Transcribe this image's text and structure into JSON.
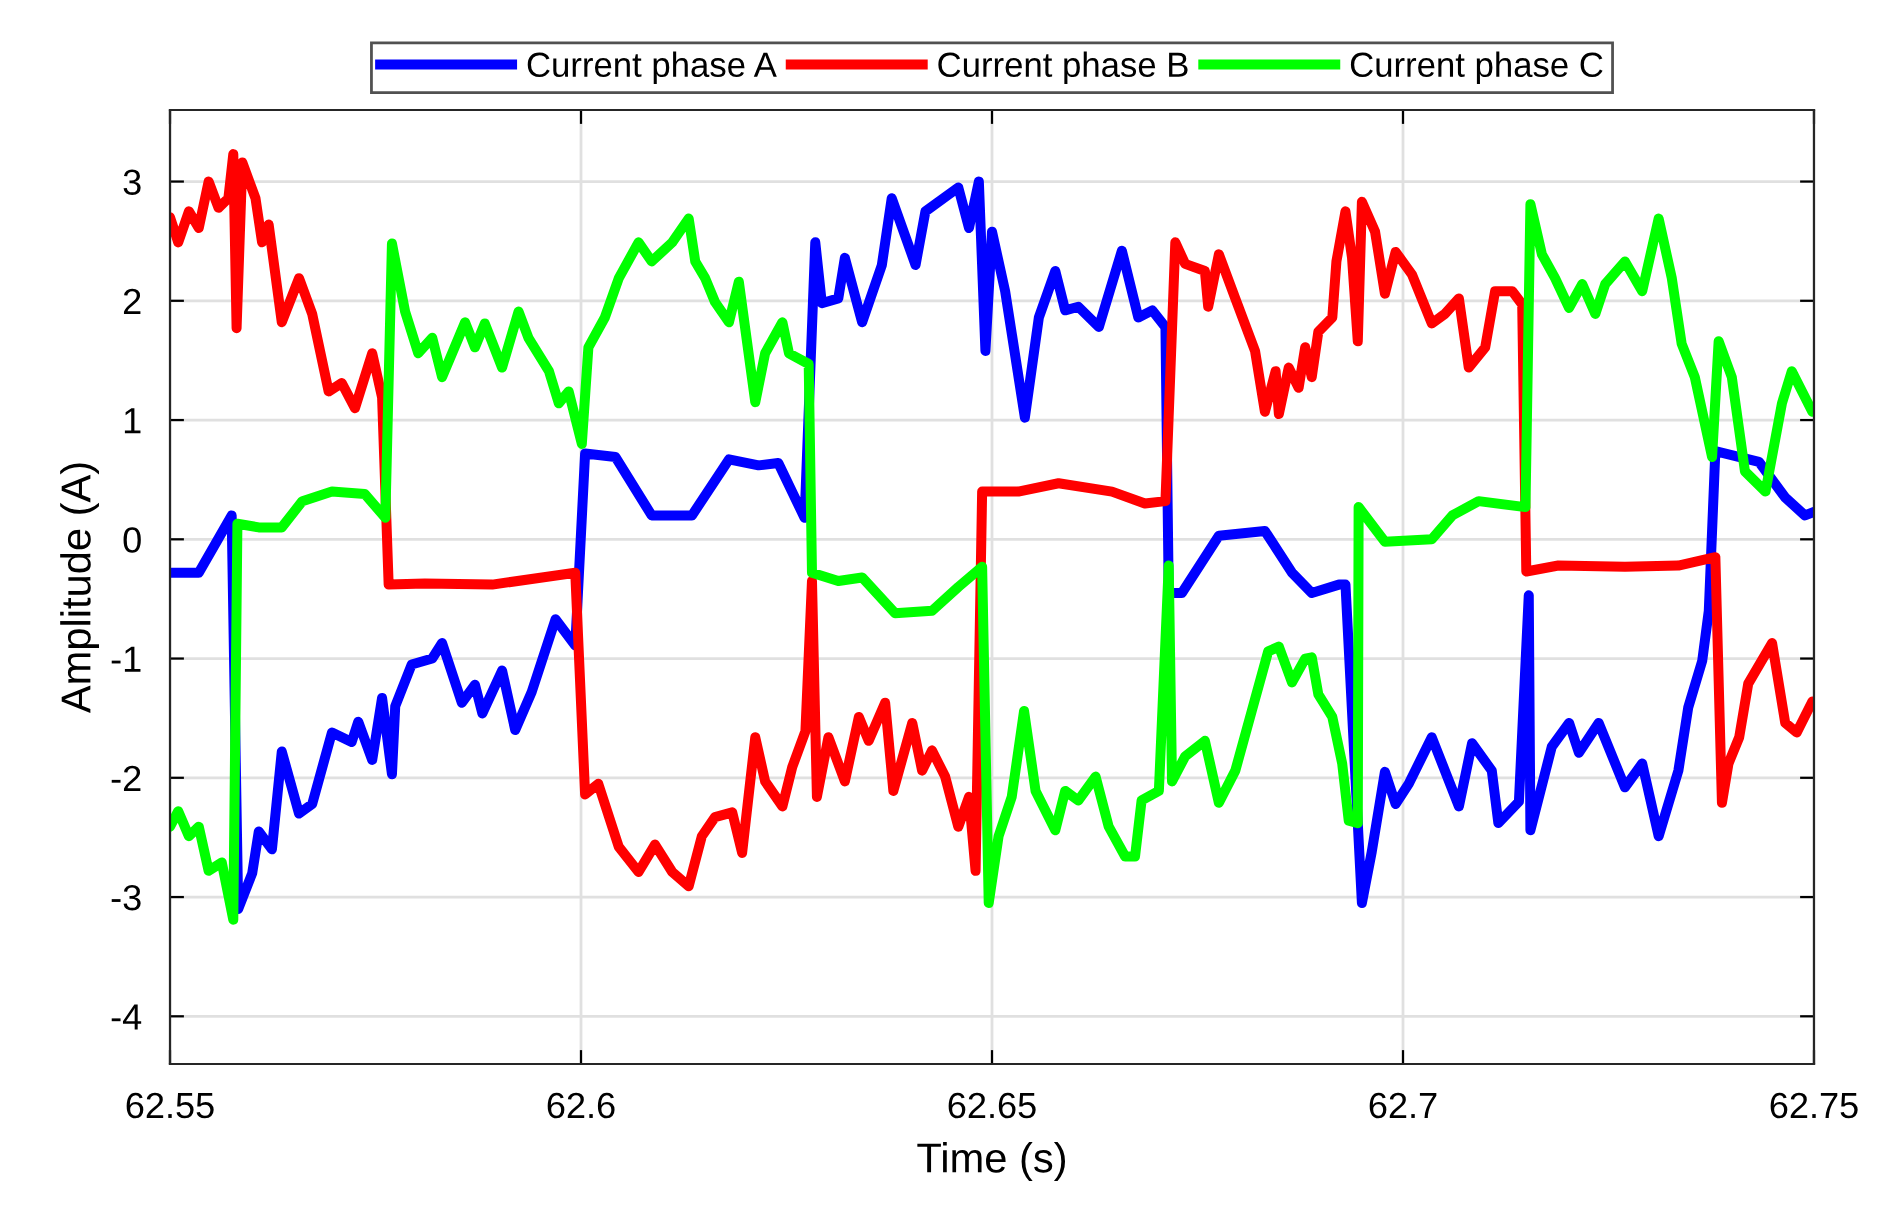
{
  "chart_data": {
    "type": "line",
    "xlabel": "Time (s)",
    "ylabel": "Amplitude (A)",
    "xlim": [
      62.55,
      62.75
    ],
    "xticks": [
      {
        "value": 62.55,
        "label": "62.55"
      },
      {
        "value": 62.6,
        "label": "62.6"
      },
      {
        "value": 62.65,
        "label": "62.65"
      },
      {
        "value": 62.7,
        "label": "62.7"
      },
      {
        "value": 62.75,
        "label": "62.75"
      }
    ],
    "ylim": [
      -4.4,
      3.6
    ],
    "yticks": [
      -4,
      -3,
      -2,
      -1,
      0,
      1,
      2,
      3
    ],
    "grid": true,
    "legend": "top",
    "marker": "none",
    "line_style": "solid",
    "series": [
      {
        "name": "Current phase A",
        "color": "#0000ff",
        "x": [
          62.55,
          62.5535,
          62.5575,
          62.5583,
          62.56,
          62.5608,
          62.5624,
          62.5636,
          62.5657,
          62.5673,
          62.5697,
          62.5721,
          62.5729,
          62.5746,
          62.5758,
          62.577,
          62.5774,
          62.5794,
          62.5819,
          62.5831,
          62.5855,
          62.5871,
          62.588,
          62.5904,
          62.592,
          62.594,
          62.5969,
          62.5993,
          62.6005,
          62.6042,
          62.6086,
          62.6135,
          62.618,
          62.6216,
          62.624,
          62.6272,
          62.6285,
          62.6293,
          62.6313,
          62.6321,
          62.6342,
          62.6366,
          62.6378,
          62.6407,
          62.6419,
          62.6459,
          62.6472,
          62.6484,
          62.6492,
          62.65,
          62.6516,
          62.654,
          62.6557,
          62.6577,
          62.6589,
          62.6605,
          62.663,
          62.6658,
          62.6678,
          62.6695,
          62.6711,
          62.6715,
          62.6731,
          62.6776,
          62.6832,
          62.6865,
          62.6889,
          62.6922,
          62.693,
          62.695,
          62.6962,
          62.6978,
          62.6991,
          62.7007,
          62.7035,
          62.7068,
          62.7084,
          62.7108,
          62.7116,
          62.7141,
          62.7153,
          62.7155,
          62.7181,
          62.7202,
          62.7214,
          62.7238,
          62.727,
          62.7291,
          62.7311,
          62.7335,
          62.7347,
          62.7364,
          62.7372,
          62.738,
          62.7433,
          62.7465,
          62.7489,
          62.75
        ],
        "values": [
          -0.28,
          -0.28,
          0.2,
          -3.1,
          -2.8,
          -2.45,
          -2.6,
          -1.78,
          -2.3,
          -2.22,
          -1.62,
          -1.7,
          -1.53,
          -1.85,
          -1.33,
          -1.97,
          -1.4,
          -1.05,
          -1.0,
          -0.87,
          -1.37,
          -1.22,
          -1.46,
          -1.1,
          -1.6,
          -1.28,
          -0.67,
          -0.89,
          0.72,
          0.69,
          0.2,
          0.2,
          0.67,
          0.62,
          0.64,
          0.18,
          2.49,
          1.98,
          2.02,
          2.36,
          1.82,
          2.3,
          2.86,
          2.3,
          2.75,
          2.95,
          2.61,
          3.0,
          1.58,
          2.58,
          2.08,
          1.02,
          1.86,
          2.25,
          1.92,
          1.95,
          1.78,
          2.42,
          1.86,
          1.92,
          1.78,
          -0.45,
          -0.45,
          0.03,
          0.07,
          -0.28,
          -0.45,
          -0.38,
          -0.38,
          -3.05,
          -2.62,
          -1.95,
          -2.22,
          -2.05,
          -1.66,
          -2.24,
          -1.71,
          -1.94,
          -2.38,
          -2.2,
          -0.47,
          -2.44,
          -1.74,
          -1.54,
          -1.79,
          -1.54,
          -2.08,
          -1.88,
          -2.49,
          -1.94,
          -1.41,
          -1.02,
          -0.6,
          0.74,
          0.65,
          0.35,
          0.2,
          0.23
        ]
      },
      {
        "name": "Current phase B",
        "color": "#ff0000",
        "x": [
          62.55,
          62.551,
          62.5523,
          62.5535,
          62.5547,
          62.5559,
          62.5571,
          62.5577,
          62.5581,
          62.5588,
          62.5604,
          62.5612,
          62.562,
          62.5636,
          62.5657,
          62.5673,
          62.5693,
          62.5709,
          62.5725,
          62.5746,
          62.5758,
          62.5766,
          62.581,
          62.5892,
          62.5993,
          62.6005,
          62.6021,
          62.6046,
          62.607,
          62.609,
          62.6111,
          62.6131,
          62.6147,
          62.6163,
          62.6184,
          62.6196,
          62.6212,
          62.6224,
          62.6245,
          62.6257,
          62.6273,
          62.6281,
          62.6287,
          62.6301,
          62.6321,
          62.6338,
          62.635,
          62.637,
          62.638,
          62.6403,
          62.6415,
          62.6427,
          62.6443,
          62.6459,
          62.6472,
          62.648,
          62.6488,
          62.6532,
          62.6581,
          62.6646,
          62.6686,
          62.6711,
          62.6723,
          62.6735,
          62.6759,
          62.6763,
          62.6776,
          62.6796,
          62.682,
          62.6832,
          62.6845,
          62.6849,
          62.6861,
          62.6873,
          62.6881,
          62.6889,
          62.6897,
          62.6914,
          62.6919,
          62.693,
          62.6938,
          62.6945,
          62.695,
          62.6966,
          62.6978,
          62.6991,
          62.7011,
          62.7035,
          62.7051,
          62.7068,
          62.708,
          62.71,
          62.7112,
          62.7133,
          62.7145,
          62.715,
          62.7189,
          62.727,
          62.7335,
          62.738,
          62.7388,
          62.7396,
          62.7409,
          62.742,
          62.7449,
          62.7465,
          62.7479,
          62.7498
        ],
        "values": [
          2.7,
          2.49,
          2.75,
          2.61,
          3.0,
          2.78,
          2.86,
          3.23,
          1.77,
          3.16,
          2.86,
          2.49,
          2.64,
          1.82,
          2.19,
          1.89,
          1.24,
          1.31,
          1.1,
          1.56,
          1.19,
          -0.38,
          -0.37,
          -0.38,
          -0.28,
          -2.14,
          -2.05,
          -2.58,
          -2.79,
          -2.56,
          -2.79,
          -2.91,
          -2.49,
          -2.33,
          -2.29,
          -2.63,
          -1.66,
          -2.03,
          -2.24,
          -1.91,
          -1.61,
          -0.35,
          -2.16,
          -1.66,
          -2.03,
          -1.49,
          -1.69,
          -1.37,
          -2.11,
          -1.54,
          -1.94,
          -1.77,
          -1.99,
          -2.41,
          -2.16,
          -2.78,
          0.4,
          0.4,
          0.47,
          0.4,
          0.3,
          0.32,
          2.49,
          2.31,
          2.25,
          1.95,
          2.39,
          2.02,
          1.58,
          1.07,
          1.41,
          1.05,
          1.44,
          1.27,
          1.61,
          1.36,
          1.74,
          1.86,
          2.33,
          2.75,
          2.36,
          1.66,
          2.83,
          2.58,
          2.06,
          2.41,
          2.22,
          1.81,
          1.89,
          2.02,
          1.44,
          1.61,
          2.08,
          2.08,
          1.97,
          -0.27,
          -0.22,
          -0.23,
          -0.22,
          -0.15,
          -2.21,
          -1.88,
          -1.66,
          -1.21,
          -0.87,
          -1.54,
          -1.62,
          -1.36
        ]
      },
      {
        "name": "Current phase C",
        "color": "#00ff00",
        "x": [
          62.55,
          62.551,
          62.5523,
          62.5535,
          62.5547,
          62.5563,
          62.5577,
          62.5582,
          62.5608,
          62.5636,
          62.5661,
          62.5697,
          62.5737,
          62.5762,
          62.577,
          62.5786,
          62.5802,
          62.5819,
          62.5831,
          62.5859,
          62.5871,
          62.5883,
          62.5904,
          62.5924,
          62.5936,
          62.5961,
          62.5973,
          62.5985,
          62.6001,
          62.6009,
          62.6029,
          62.6046,
          62.607,
          62.6086,
          62.6111,
          62.6131,
          62.6139,
          62.6151,
          62.6163,
          62.618,
          62.6192,
          62.6212,
          62.6224,
          62.6245,
          62.6253,
          62.6277,
          62.6281,
          62.6313,
          62.6342,
          62.6382,
          62.6427,
          62.6459,
          62.6488,
          62.6496,
          62.6508,
          62.6524,
          62.6539,
          62.6553,
          62.6577,
          62.6589,
          62.6605,
          62.6626,
          62.6642,
          62.6662,
          62.6674,
          62.6682,
          62.6703,
          62.6715,
          62.6719,
          62.6735,
          62.6759,
          62.6776,
          62.6796,
          62.6816,
          62.6836,
          62.6849,
          62.6865,
          62.6881,
          62.6889,
          62.6897,
          62.6914,
          62.6926,
          62.6934,
          62.6945,
          62.6946,
          62.6978,
          62.7035,
          62.706,
          62.7092,
          62.7149,
          62.7155,
          62.7169,
          62.7185,
          62.7202,
          62.7218,
          62.7234,
          62.7246,
          62.727,
          62.7291,
          62.7311,
          62.7327,
          62.7339,
          62.7355,
          62.7376,
          62.7384,
          62.74,
          62.7416,
          62.7441,
          62.7461,
          62.7473,
          62.7498
        ],
        "values": [
          -2.41,
          -2.28,
          -2.49,
          -2.41,
          -2.78,
          -2.71,
          -3.19,
          0.13,
          0.1,
          0.1,
          0.32,
          0.4,
          0.38,
          0.18,
          2.48,
          1.91,
          1.56,
          1.69,
          1.36,
          1.82,
          1.61,
          1.81,
          1.44,
          1.91,
          1.69,
          1.41,
          1.14,
          1.24,
          0.8,
          1.61,
          1.86,
          2.19,
          2.49,
          2.33,
          2.49,
          2.69,
          2.33,
          2.19,
          1.99,
          1.82,
          2.16,
          1.15,
          1.56,
          1.82,
          1.56,
          1.47,
          -0.28,
          -0.35,
          -0.32,
          -0.62,
          -0.6,
          -0.4,
          -0.23,
          -3.05,
          -2.49,
          -2.16,
          -1.44,
          -2.11,
          -2.44,
          -2.11,
          -2.19,
          -1.99,
          -2.41,
          -2.66,
          -2.66,
          -2.19,
          -2.11,
          -0.22,
          -2.03,
          -1.82,
          -1.69,
          -2.21,
          -1.94,
          -1.44,
          -0.94,
          -0.9,
          -1.2,
          -1.0,
          -0.99,
          -1.3,
          -1.49,
          -1.88,
          -2.36,
          -2.38,
          0.27,
          -0.02,
          0.0,
          0.2,
          0.32,
          0.27,
          2.81,
          2.39,
          2.19,
          1.94,
          2.14,
          1.89,
          2.14,
          2.33,
          2.08,
          2.69,
          2.19,
          1.64,
          1.36,
          0.69,
          1.66,
          1.36,
          0.57,
          0.4,
          1.14,
          1.41,
          1.07
        ]
      }
    ]
  }
}
